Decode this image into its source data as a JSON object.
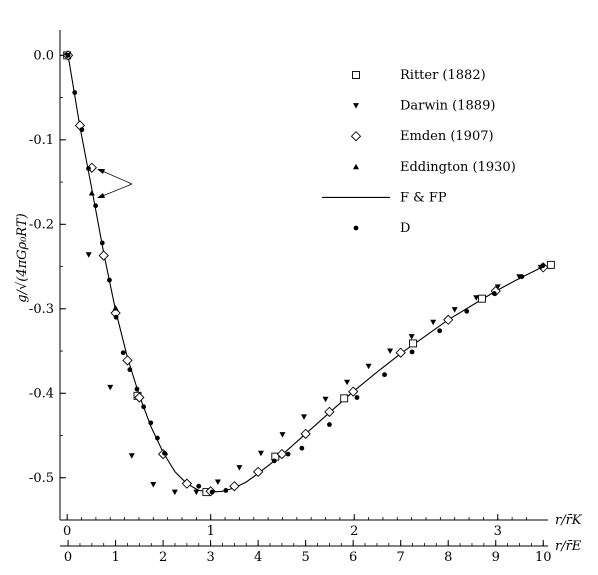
{
  "chart_data": {
    "type": "scatter",
    "ylabel": "g/√(4πGρ₀RT)",
    "ylim": [
      -0.55,
      0.03
    ],
    "y_ticks": [
      "0.0",
      "-0.1",
      "-0.2",
      "-0.3",
      "-0.4",
      "-0.5"
    ],
    "x_axes": [
      {
        "label": "r/r̄K",
        "ticks": [
          "0",
          "1",
          "2",
          "3"
        ],
        "xlim": [
          -0.05,
          3.35
        ]
      },
      {
        "label": "r/r̄E",
        "ticks": [
          "0",
          "1",
          "2",
          "3",
          "4",
          "5",
          "6",
          "7",
          "8",
          "9",
          "10"
        ],
        "xlim": [
          -0.17,
          10.1
        ]
      }
    ],
    "legend": "top-right",
    "grid": false,
    "series": [
      {
        "name": "Ritter (1882)",
        "marker": "open-square",
        "axis": "r/r̄K",
        "x": [
          0.0,
          0.49,
          0.97,
          1.45,
          1.93,
          2.41,
          2.89,
          3.37
        ],
        "y": [
          0.0,
          -0.403,
          -0.517,
          -0.475,
          -0.406,
          -0.341,
          -0.288,
          -0.248
        ]
      },
      {
        "name": "Darwin (1889)",
        "marker": "filled-triangle-down",
        "axis": "r/r̄K",
        "x": [
          0.0,
          0.15,
          0.3,
          0.45,
          0.6,
          0.75,
          0.9,
          1.05,
          1.2,
          1.35,
          1.5,
          1.65,
          1.8,
          1.95,
          2.1,
          2.25,
          2.4,
          2.55,
          2.7,
          2.85,
          3.0,
          3.15,
          3.3
        ],
        "y": [
          0.0,
          -0.236,
          -0.393,
          -0.474,
          -0.508,
          -0.517,
          -0.517,
          -0.505,
          -0.488,
          -0.471,
          -0.449,
          -0.428,
          -0.407,
          -0.387,
          -0.368,
          -0.35,
          -0.333,
          -0.316,
          -0.301,
          -0.287,
          -0.274,
          -0.262,
          -0.251
        ]
      },
      {
        "name": "Emden (1907)",
        "marker": "open-diamond",
        "axis": "r/r̄E",
        "x": [
          0.0,
          0.25,
          0.5,
          0.75,
          1.0,
          1.25,
          1.5,
          2.0,
          2.5,
          3.0,
          3.5,
          4.0,
          4.5,
          5.0,
          5.5,
          6.0,
          7.0,
          8.0,
          9.0,
          10.0
        ],
        "y": [
          0.0,
          -0.083,
          -0.133,
          -0.237,
          -0.305,
          -0.361,
          -0.405,
          -0.472,
          -0.507,
          -0.516,
          -0.51,
          -0.493,
          -0.472,
          -0.448,
          -0.422,
          -0.398,
          -0.352,
          -0.313,
          -0.279,
          -0.251
        ]
      },
      {
        "name": "Eddington (1930)",
        "marker": "filled-triangle-up",
        "axis": "r/r̄E",
        "x": [
          0.5,
          1.0
        ],
        "y": [
          -0.163,
          -0.299
        ]
      },
      {
        "name": "F & FP",
        "marker": "line",
        "axis": "r/r̄E",
        "x": [
          0,
          0.25,
          0.5,
          0.75,
          1.0,
          1.25,
          1.5,
          1.75,
          2.0,
          2.25,
          2.5,
          2.75,
          3.0,
          3.25,
          3.5,
          3.75,
          4.0,
          4.5,
          5.0,
          5.5,
          6.0,
          6.5,
          7.0,
          7.5,
          8.0,
          8.5,
          9.0,
          9.5,
          10.0
        ],
        "y": [
          0,
          -0.085,
          -0.158,
          -0.234,
          -0.302,
          -0.358,
          -0.403,
          -0.44,
          -0.47,
          -0.493,
          -0.507,
          -0.515,
          -0.517,
          -0.516,
          -0.512,
          -0.505,
          -0.495,
          -0.473,
          -0.448,
          -0.423,
          -0.398,
          -0.375,
          -0.353,
          -0.333,
          -0.313,
          -0.296,
          -0.279,
          -0.264,
          -0.25
        ]
      },
      {
        "name": "D",
        "marker": "filled-circle",
        "axis": "r/r̄E",
        "x": [
          0.0,
          0.14,
          0.29,
          0.43,
          0.58,
          0.72,
          0.87,
          1.01,
          1.16,
          1.3,
          1.45,
          1.59,
          1.74,
          1.88,
          2.03,
          2.75,
          3.03,
          3.32,
          4.34,
          4.63,
          4.92,
          5.5,
          6.08,
          6.66,
          7.24,
          7.82,
          8.39,
          8.97,
          9.55,
          9.99
        ],
        "y": [
          0.0,
          -0.044,
          -0.088,
          -0.134,
          -0.178,
          -0.222,
          -0.266,
          -0.31,
          -0.352,
          -0.372,
          -0.395,
          -0.416,
          -0.435,
          -0.453,
          -0.471,
          -0.51,
          -0.517,
          -0.515,
          -0.48,
          -0.472,
          -0.465,
          -0.437,
          -0.405,
          -0.378,
          -0.351,
          -0.326,
          -0.303,
          -0.282,
          -0.262,
          -0.249
        ]
      }
    ]
  }
}
